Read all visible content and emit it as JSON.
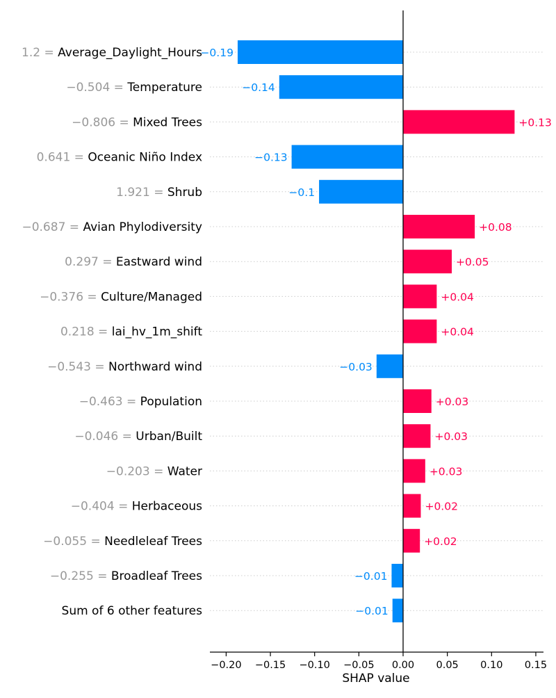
{
  "chart_data": {
    "type": "bar",
    "orientation": "horizontal",
    "xlabel": "SHAP value",
    "xlim": [
      -0.22,
      0.16
    ],
    "xticks": [
      -0.2,
      -0.15,
      -0.1,
      -0.05,
      0.0,
      0.05,
      0.1,
      0.15
    ],
    "xtick_labels": [
      "−0.20",
      "−0.15",
      "−0.10",
      "−0.05",
      "0.00",
      "0.05",
      "0.10",
      "0.15"
    ],
    "grid": "dotted horizontal guides per row",
    "colors": {
      "positive": "#ff0051",
      "negative": "#008bfb",
      "feature_value": "#999999",
      "feature_name": "#000000",
      "guide": "#cccccc",
      "axis": "#000000"
    },
    "features": [
      {
        "value": "1.2",
        "name": "Average_Daylight_Hours",
        "shap": -0.187,
        "label": "−0.19"
      },
      {
        "value": "−0.504",
        "name": "Temperature",
        "shap": -0.14,
        "label": "−0.14"
      },
      {
        "value": "−0.806",
        "name": "Mixed Trees",
        "shap": 0.126,
        "label": "+0.13"
      },
      {
        "value": "0.641",
        "name": "Oceanic Niño Index",
        "shap": -0.126,
        "label": "−0.13"
      },
      {
        "value": "1.921",
        "name": "Shrub",
        "shap": -0.095,
        "label": "−0.1"
      },
      {
        "value": "−0.687",
        "name": "Avian Phylodiversity",
        "shap": 0.081,
        "label": "+0.08"
      },
      {
        "value": "0.297",
        "name": "Eastward wind",
        "shap": 0.055,
        "label": "+0.05"
      },
      {
        "value": "−0.376",
        "name": "Culture/Managed",
        "shap": 0.038,
        "label": "+0.04"
      },
      {
        "value": "0.218",
        "name": "lai_hv_1m_shift",
        "shap": 0.038,
        "label": "+0.04"
      },
      {
        "value": "−0.543",
        "name": "Northward wind",
        "shap": -0.03,
        "label": "−0.03"
      },
      {
        "value": "−0.463",
        "name": "Population",
        "shap": 0.032,
        "label": "+0.03"
      },
      {
        "value": "−0.046",
        "name": "Urban/Built",
        "shap": 0.031,
        "label": "+0.03"
      },
      {
        "value": "−0.203",
        "name": "Water",
        "shap": 0.025,
        "label": "+0.03"
      },
      {
        "value": "−0.404",
        "name": "Herbaceous",
        "shap": 0.02,
        "label": "+0.02"
      },
      {
        "value": "−0.055",
        "name": "Needleleaf Trees",
        "shap": 0.019,
        "label": "+0.02"
      },
      {
        "value": "−0.255",
        "name": "Broadleaf Trees",
        "shap": -0.013,
        "label": "−0.01"
      },
      {
        "value": "",
        "name": "Sum of 6 other features",
        "shap": -0.012,
        "label": "−0.01"
      }
    ]
  }
}
